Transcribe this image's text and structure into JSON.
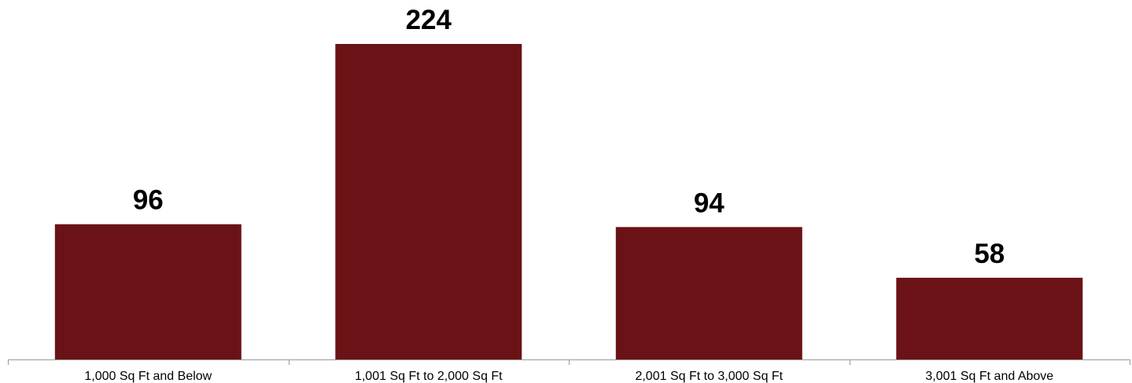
{
  "chart_data": {
    "type": "bar",
    "title": "",
    "xlabel": "",
    "ylabel": "",
    "categories": [
      "1,000 Sq Ft and Below",
      "1,001 Sq Ft to 2,000 Sq Ft",
      "2,001 Sq Ft to 3,000 Sq Ft",
      "3,001 Sq Ft and Above"
    ],
    "values": [
      96,
      224,
      94,
      58
    ],
    "ylim": [
      0,
      250
    ],
    "grid": false,
    "legend": "none",
    "colors": {
      "bar": "#6b1216",
      "axis": "#9a9a9a",
      "text": "#000000"
    }
  }
}
